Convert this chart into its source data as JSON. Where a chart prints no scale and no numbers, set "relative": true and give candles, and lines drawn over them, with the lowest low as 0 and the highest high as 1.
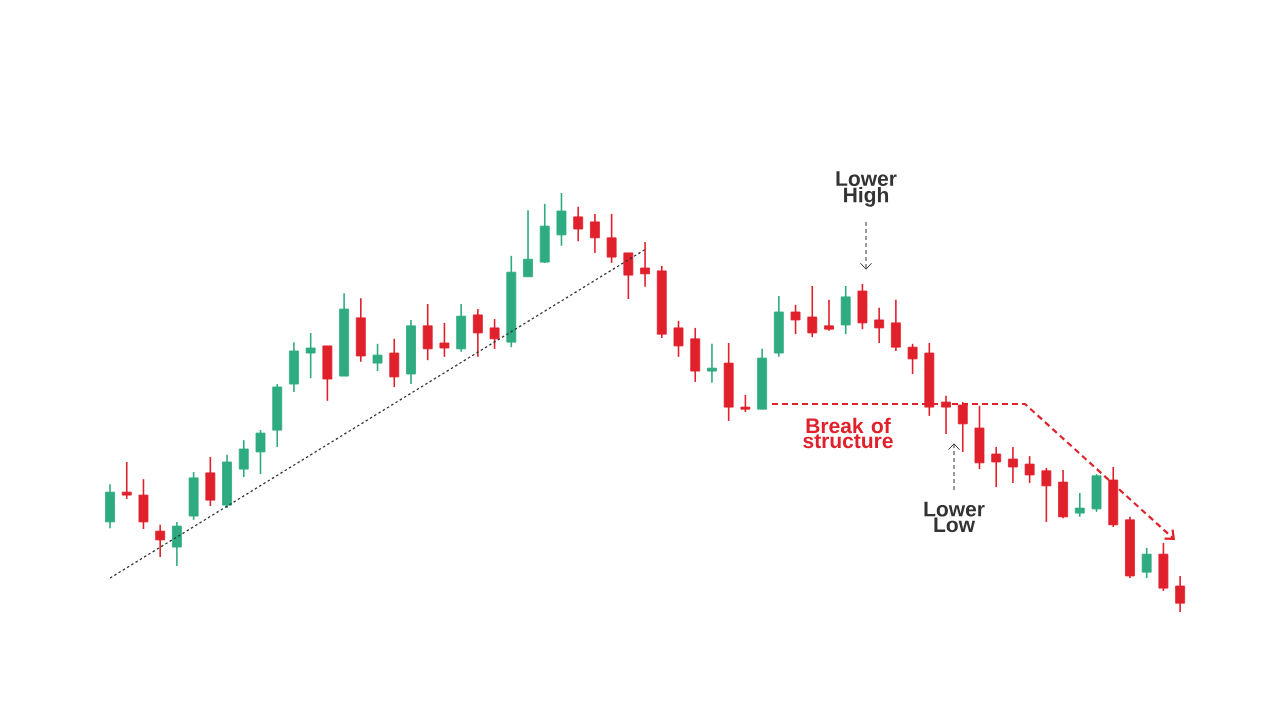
{
  "chart_data": {
    "type": "candlestick",
    "relative": true,
    "tick_labels": false,
    "categories": [
      null,
      null,
      null,
      null,
      null,
      null,
      null,
      null,
      null,
      null,
      null,
      null,
      null,
      null,
      null,
      null,
      null,
      null,
      null,
      null,
      null,
      null,
      null,
      null,
      null,
      null,
      null,
      null,
      null,
      null,
      null,
      null,
      null,
      null,
      null,
      null,
      null,
      null,
      null,
      null,
      null,
      null,
      null,
      null,
      null,
      null,
      null,
      null,
      null,
      null,
      null,
      null,
      null,
      null,
      null,
      null,
      null,
      null,
      null,
      null,
      null,
      null,
      null,
      null,
      null
    ],
    "ohlc": [
      [
        0.215,
        0.305,
        0.2,
        0.286
      ],
      [
        0.286,
        0.358,
        0.27,
        0.279
      ],
      [
        0.279,
        0.317,
        0.198,
        0.215
      ],
      [
        0.193,
        0.208,
        0.131,
        0.172
      ],
      [
        0.155,
        0.215,
        0.11,
        0.205
      ],
      [
        0.229,
        0.334,
        0.22,
        0.32
      ],
      [
        0.332,
        0.37,
        0.253,
        0.267
      ],
      [
        0.255,
        0.375,
        0.248,
        0.358
      ],
      [
        0.341,
        0.41,
        0.322,
        0.389
      ],
      [
        0.382,
        0.434,
        0.329,
        0.427
      ],
      [
        0.434,
        0.544,
        0.394,
        0.537
      ],
      [
        0.544,
        0.644,
        0.525,
        0.623
      ],
      [
        0.618,
        0.666,
        0.558,
        0.63
      ],
      [
        0.635,
        0.635,
        0.504,
        0.556
      ],
      [
        0.563,
        0.761,
        0.563,
        0.723
      ],
      [
        0.702,
        0.749,
        0.597,
        0.611
      ],
      [
        0.594,
        0.64,
        0.575,
        0.613
      ],
      [
        0.618,
        0.652,
        0.537,
        0.561
      ],
      [
        0.568,
        0.697,
        0.544,
        0.683
      ],
      [
        0.683,
        0.735,
        0.601,
        0.628
      ],
      [
        0.642,
        0.69,
        0.609,
        0.63
      ],
      [
        0.628,
        0.735,
        0.621,
        0.706
      ],
      [
        0.709,
        0.723,
        0.609,
        0.666
      ],
      [
        0.678,
        0.699,
        0.628,
        0.652
      ],
      [
        0.644,
        0.85,
        0.632,
        0.811
      ],
      [
        0.8,
        0.959,
        0.8,
        0.842
      ],
      [
        0.835,
        0.974,
        0.833,
        0.921
      ],
      [
        0.9,
        1,
        0.874,
        0.957
      ],
      [
        0.943,
        0.967,
        0.885,
        0.914
      ],
      [
        0.931,
        0.95,
        0.857,
        0.893
      ],
      [
        0.893,
        0.95,
        0.833,
        0.847
      ],
      [
        0.857,
        0.857,
        0.747,
        0.804
      ],
      [
        0.821,
        0.883,
        0.776,
        0.807
      ],
      [
        0.814,
        0.826,
        0.654,
        0.663
      ],
      [
        0.678,
        0.695,
        0.609,
        0.635
      ],
      [
        0.652,
        0.678,
        0.549,
        0.575
      ],
      [
        0.575,
        0.64,
        0.547,
        0.582
      ],
      [
        0.594,
        0.642,
        0.456,
        0.489
      ],
      [
        0.489,
        0.518,
        0.477,
        0.484
      ],
      [
        0.484,
        0.628,
        0.484,
        0.606
      ],
      [
        0.618,
        0.754,
        0.609,
        0.716
      ],
      [
        0.716,
        0.733,
        0.663,
        0.697
      ],
      [
        0.704,
        0.778,
        0.656,
        0.666
      ],
      [
        0.683,
        0.745,
        0.671,
        0.675
      ],
      [
        0.685,
        0.778,
        0.663,
        0.752
      ],
      [
        0.766,
        0.783,
        0.675,
        0.69
      ],
      [
        0.697,
        0.726,
        0.642,
        0.678
      ],
      [
        0.69,
        0.745,
        0.623,
        0.632
      ],
      [
        0.632,
        0.64,
        0.568,
        0.604
      ],
      [
        0.618,
        0.642,
        0.468,
        0.489
      ],
      [
        0.501,
        0.516,
        0.425,
        0.489
      ],
      [
        0.494,
        0.501,
        0.382,
        0.449
      ],
      [
        0.439,
        0.492,
        0.341,
        0.356
      ],
      [
        0.377,
        0.394,
        0.298,
        0.358
      ],
      [
        0.365,
        0.394,
        0.308,
        0.346
      ],
      [
        0.353,
        0.372,
        0.308,
        0.327
      ],
      [
        0.337,
        0.344,
        0.215,
        0.301
      ],
      [
        0.31,
        0.339,
        0.224,
        0.227
      ],
      [
        0.236,
        0.284,
        0.227,
        0.248
      ],
      [
        0.246,
        0.329,
        0.239,
        0.325
      ],
      [
        0.315,
        0.346,
        0.203,
        0.208
      ],
      [
        0.22,
        0.227,
        0.081,
        0.086
      ],
      [
        0.095,
        0.153,
        0.081,
        0.138
      ],
      [
        0.138,
        0.165,
        0.05,
        0.057
      ],
      [
        0.062,
        0.086,
        0,
        0.021
      ]
    ],
    "colors": [
      "#2eab80",
      "#e0202b",
      "#e0202b",
      "#e0202b",
      "#2eab80",
      "#2eab80",
      "#e0202b",
      "#2eab80",
      "#2eab80",
      "#2eab80",
      "#2eab80",
      "#2eab80",
      "#2eab80",
      "#e0202b",
      "#2eab80",
      "#e0202b",
      "#2eab80",
      "#e0202b",
      "#2eab80",
      "#e0202b",
      "#e0202b",
      "#2eab80",
      "#e0202b",
      "#e0202b",
      "#2eab80",
      "#2eab80",
      "#2eab80",
      "#2eab80",
      "#e0202b",
      "#e0202b",
      "#e0202b",
      "#e0202b",
      "#e0202b",
      "#e0202b",
      "#e0202b",
      "#e0202b",
      "#2eab80",
      "#e0202b",
      "#e0202b",
      "#2eab80",
      "#2eab80",
      "#e0202b",
      "#e0202b",
      "#e0202b",
      "#2eab80",
      "#e0202b",
      "#e0202b",
      "#e0202b",
      "#e0202b",
      "#e0202b",
      "#e0202b",
      "#e0202b",
      "#e0202b",
      "#e0202b",
      "#e0202b",
      "#e0202b",
      "#e0202b",
      "#e0202b",
      "#2eab80",
      "#2eab80",
      "#e0202b",
      "#e0202b",
      "#2eab80",
      "#e0202b",
      "#e0202b"
    ],
    "series": [
      {
        "type": "line",
        "values": [
          0.081,
          null,
          null,
          null,
          null,
          null,
          null,
          null,
          null,
          null,
          null,
          null,
          null,
          null,
          null,
          null,
          null,
          null,
          null,
          null,
          null,
          null,
          null,
          null,
          null,
          null,
          null,
          null,
          null,
          null,
          null,
          null,
          0.865,
          null,
          null,
          null,
          null,
          null,
          null,
          null,
          null,
          null,
          null,
          null,
          null,
          null,
          null,
          null,
          null,
          null,
          null,
          null,
          null,
          null,
          null,
          null,
          null,
          null,
          null,
          null,
          null,
          null,
          null,
          null,
          null
        ],
        "color": "#333333",
        "line_style": "dotted"
      }
    ],
    "annotations": [
      "Lower High",
      "Break of structure",
      "Lower Low"
    ]
  }
}
